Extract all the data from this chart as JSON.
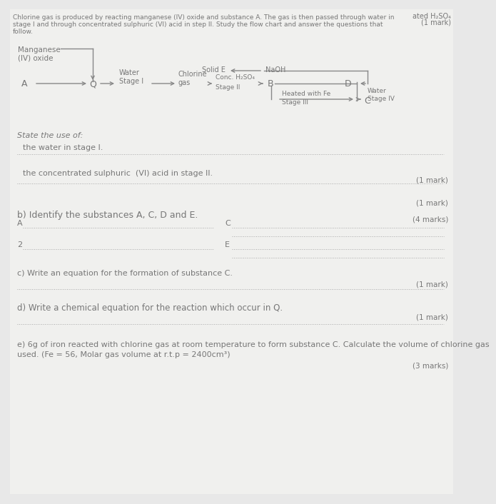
{
  "bg_color": "#e8e8e8",
  "page_color": "#f0f0ee",
  "text_color": "#777777",
  "arrow_color": "#888888",
  "dot_color": "#aaaaaa",
  "header_right1": "ated H₂SO₄",
  "header_right2": "(1 mark)",
  "intro_line1": "Chlorine gas is produced by reacting manganese (IV) oxide and substance A. The gas is then passed through water in",
  "intro_line2": "stage I and through concentrated sulphuric (VI) acid in step II. Study the flow chart and answer the questions that",
  "intro_line3": "follow.",
  "MnO2_label": "Manganese\n(IV) oxide",
  "A_label": "A",
  "Q_label": "Q",
  "water_stage1_label": "Water\nStage I",
  "chlorine_label": "Chlorine\ngas",
  "conc_h2so4_label": "Conc. H₂SO₄",
  "stage2_label": "Stage II",
  "B_label": "B",
  "heated_fe_label": "Heated with Fe",
  "stage3_label": "Stage III",
  "C_label": "C",
  "water_stage4_label": "Water\nStage IV",
  "D_label": "D",
  "NaOH_label": "NaOH",
  "solid_E_label": "Solid E",
  "q_state": "State the use of:",
  "q_water": "the water in stage I.",
  "q_conc": "the concentrated sulphuric  (VI) acid in stage II.",
  "q_identify": "b) Identify the substances A, C, D and E.",
  "q_equation_c": "c) Write an equation for the formation of substance C.",
  "q_equation_q": "d) Write a chemical equation for the reaction which occur in Q.",
  "q_calc": "e) 6g of iron reacted with chlorine gas at room temperature to form substance C. Calculate the volume of chlorine gas",
  "q_calc2": "used. (Fe = 56, Molar gas volume at r.t.p = 2400cm³)",
  "m1": "(1 mark)",
  "m1b": "(1 mark)",
  "m4": "(4 marks)",
  "m1c": "(1 mark)",
  "m1d": "(1 mark)",
  "m3": "(3 marks)",
  "label_A": "A",
  "label_C": "C",
  "label_2": "2",
  "label_E": "E"
}
